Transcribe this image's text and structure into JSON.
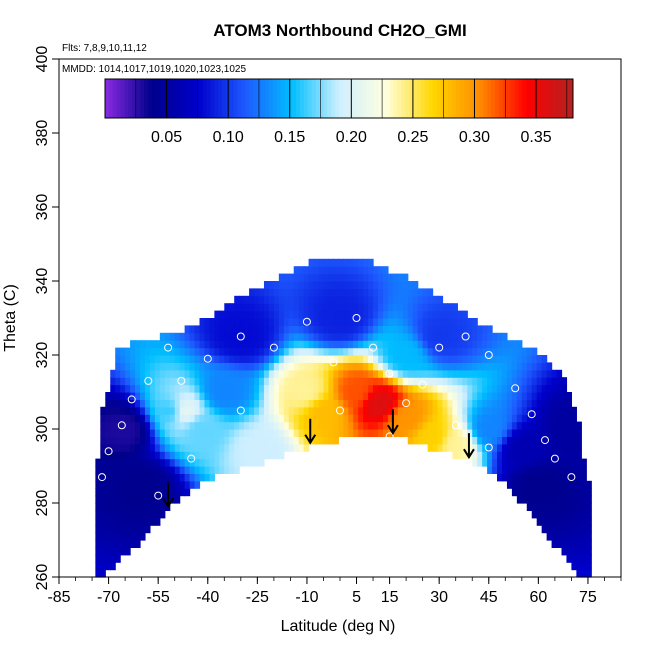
{
  "chart_data": {
    "type": "heatmap",
    "title": "ATOM3 Northbound CH2O_GMI",
    "flights_note": "Flts: 7,8,9,10,11,12",
    "dates_note": "MMDD: 1014,1017,1019,1020,1023,1025",
    "xlabel": "Latitude (deg N)",
    "ylabel": "Theta (C)",
    "xlim": [
      -85,
      85
    ],
    "ylim": [
      260,
      400
    ],
    "x_ticks": [
      -85,
      -70,
      -55,
      -40,
      -25,
      -10,
      5,
      15,
      30,
      45,
      60,
      75
    ],
    "x_tick_labels": [
      "-85",
      "-70",
      "-55",
      "-40",
      "-25",
      "-10",
      "5",
      "15",
      "30",
      "45",
      "60",
      "75"
    ],
    "y_ticks": [
      260,
      280,
      300,
      320,
      340,
      360,
      380,
      400
    ],
    "y_tick_labels": [
      "260",
      "280",
      "300",
      "320",
      "340",
      "360",
      "380",
      "400"
    ],
    "colorbar": {
      "min": 0.0,
      "max": 0.38,
      "ticks": [
        0.05,
        0.1,
        0.15,
        0.2,
        0.25,
        0.3,
        0.35
      ],
      "tick_labels": [
        "0.05",
        "0.10",
        "0.15",
        "0.20",
        "0.25",
        "0.30",
        "0.35"
      ],
      "colors": [
        "#8A2BE2",
        "#00008B",
        "#0000CD",
        "#1E5AFF",
        "#00BFFF",
        "#CFEFFF",
        "#FFFFE0",
        "#FFD700",
        "#FF8C00",
        "#FF0000",
        "#B22222"
      ]
    },
    "tropopause_arrows_lat": [
      -52,
      -9,
      16,
      39
    ],
    "surface_theta": [
      [
        -75,
        257
      ],
      [
        -70,
        262
      ],
      [
        -60,
        270
      ],
      [
        -52,
        278
      ],
      [
        -45,
        284
      ],
      [
        -38,
        287
      ],
      [
        -30,
        289
      ],
      [
        -20,
        292
      ],
      [
        -10,
        295
      ],
      [
        0,
        297
      ],
      [
        10,
        299
      ],
      [
        20,
        297
      ],
      [
        30,
        294
      ],
      [
        40,
        291
      ],
      [
        48,
        287
      ],
      [
        55,
        280
      ],
      [
        62,
        272
      ],
      [
        68,
        265
      ],
      [
        74,
        258
      ]
    ],
    "upper_edge": [
      [
        -74,
        285
      ],
      [
        -72,
        305
      ],
      [
        -67,
        322
      ],
      [
        -60,
        324
      ],
      [
        -50,
        326
      ],
      [
        -40,
        330
      ],
      [
        -30,
        336
      ],
      [
        -20,
        340
      ],
      [
        -10,
        345
      ],
      [
        0,
        347
      ],
      [
        10,
        345
      ],
      [
        20,
        341
      ],
      [
        30,
        336
      ],
      [
        40,
        330
      ],
      [
        50,
        325
      ],
      [
        60,
        321
      ],
      [
        67,
        315
      ],
      [
        72,
        303
      ],
      [
        75,
        285
      ]
    ],
    "observation_points": [
      [
        -72,
        287
      ],
      [
        -70,
        294
      ],
      [
        -66,
        301
      ],
      [
        -63,
        308
      ],
      [
        -58,
        313
      ],
      [
        -52,
        322
      ],
      [
        -48,
        313
      ],
      [
        -40,
        319
      ],
      [
        -30,
        325
      ],
      [
        -20,
        322
      ],
      [
        -10,
        329
      ],
      [
        -2,
        318
      ],
      [
        5,
        330
      ],
      [
        10,
        322
      ],
      [
        15,
        315
      ],
      [
        20,
        307
      ],
      [
        25,
        312
      ],
      [
        30,
        322
      ],
      [
        38,
        325
      ],
      [
        45,
        320
      ],
      [
        53,
        311
      ],
      [
        58,
        304
      ],
      [
        62,
        297
      ],
      [
        65,
        292
      ],
      [
        70,
        287
      ],
      [
        -45,
        292
      ],
      [
        -55,
        282
      ],
      [
        35,
        301
      ],
      [
        45,
        295
      ],
      [
        15,
        298
      ],
      [
        -30,
        305
      ],
      [
        0,
        305
      ]
    ],
    "fields": [
      {
        "lat": -65,
        "theta": 300,
        "value": 0.03
      },
      {
        "lat": -60,
        "theta": 285,
        "value": 0.04
      },
      {
        "lat": -50,
        "theta": 305,
        "value": 0.15
      },
      {
        "lat": -48,
        "theta": 305,
        "value": 0.22
      },
      {
        "lat": -42,
        "theta": 300,
        "value": 0.17
      },
      {
        "lat": -35,
        "theta": 310,
        "value": 0.13
      },
      {
        "lat": -25,
        "theta": 295,
        "value": 0.19
      },
      {
        "lat": -10,
        "theta": 310,
        "value": 0.24
      },
      {
        "lat": -5,
        "theta": 305,
        "value": 0.28
      },
      {
        "lat": 5,
        "theta": 310,
        "value": 0.32
      },
      {
        "lat": 12,
        "theta": 307,
        "value": 0.36
      },
      {
        "lat": 20,
        "theta": 303,
        "value": 0.3
      },
      {
        "lat": 28,
        "theta": 298,
        "value": 0.27
      },
      {
        "lat": 35,
        "theta": 296,
        "value": 0.24
      },
      {
        "lat": 45,
        "theta": 300,
        "value": 0.13
      },
      {
        "lat": 55,
        "theta": 295,
        "value": 0.06
      },
      {
        "lat": 60,
        "theta": 285,
        "value": 0.04
      },
      {
        "lat": 70,
        "theta": 300,
        "value": 0.05
      },
      {
        "lat": 0,
        "theta": 330,
        "value": 0.09
      },
      {
        "lat": -30,
        "theta": 325,
        "value": 0.08
      },
      {
        "lat": 30,
        "theta": 325,
        "value": 0.1
      },
      {
        "lat": 20,
        "theta": 320,
        "value": 0.15
      }
    ]
  }
}
